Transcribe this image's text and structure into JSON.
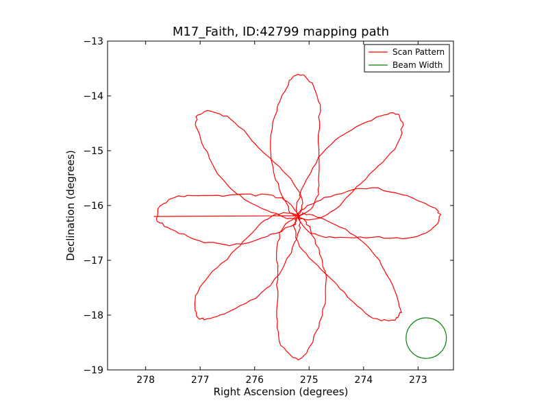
{
  "chart_data": {
    "type": "line",
    "title": "M17_Faith, ID:42799 mapping path",
    "xlabel": "Right Ascension (degrees)",
    "ylabel": "Declination (degrees)",
    "xlim": [
      278.7,
      272.35
    ],
    "ylim": [
      -19,
      -13
    ],
    "xticks": [
      {
        "value": 278,
        "label": "278"
      },
      {
        "value": 277,
        "label": "277"
      },
      {
        "value": 276,
        "label": "276"
      },
      {
        "value": 275,
        "label": "275"
      },
      {
        "value": 274,
        "label": "274"
      },
      {
        "value": 273,
        "label": "273"
      }
    ],
    "yticks": [
      {
        "value": -13,
        "label": "−13"
      },
      {
        "value": -14,
        "label": "−14"
      },
      {
        "value": -15,
        "label": "−15"
      },
      {
        "value": -16,
        "label": "−16"
      },
      {
        "value": -17,
        "label": "−17"
      },
      {
        "value": -18,
        "label": "−18"
      },
      {
        "value": -19,
        "label": "−19"
      }
    ],
    "center": {
      "ra": 275.2,
      "dec": -16.2
    },
    "series": [
      {
        "name": "Scan Pattern",
        "color": "#ff0000",
        "pattern": "rosette",
        "petals": 8,
        "petal_angles_deg": [
          0,
          45,
          90,
          135,
          180,
          225,
          270,
          315
        ],
        "petal_length_deg": 2.6,
        "petal_halfwidth_deg": 0.45,
        "start": {
          "ra": 277.85,
          "dec": -16.2
        }
      },
      {
        "name": "Beam Width",
        "color": "#008000",
        "shape": "circle",
        "center": {
          "ra": 272.85,
          "dec": -18.42
        },
        "radius_deg": 0.37
      }
    ],
    "legend": {
      "position": "top-right",
      "entries": [
        "Scan Pattern",
        "Beam Width"
      ]
    },
    "grid": false
  }
}
